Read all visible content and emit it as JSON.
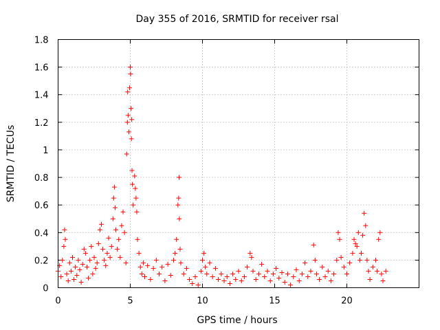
{
  "chart_data": {
    "type": "scatter",
    "title": "Day 355 of 2016, SRMTID for receiver rsal",
    "xlabel": "GPS time / hours",
    "ylabel": "SRMTID / TECUs",
    "xlim": [
      0,
      25
    ],
    "ylim": [
      0,
      1.8
    ],
    "xticks": [
      0,
      5,
      10,
      15,
      20
    ],
    "xtick_labels": [
      "0",
      "5",
      "10",
      "15",
      "20"
    ],
    "yticks": [
      0,
      0.2,
      0.4,
      0.6,
      0.8,
      1.0,
      1.2,
      1.4,
      1.6,
      1.8
    ],
    "ytick_labels": [
      "0",
      "0.2",
      "0.4",
      "0.6",
      "0.8",
      "1",
      "1.2",
      "1.4",
      "1.6",
      "1.8"
    ],
    "grid": true,
    "marker": "+",
    "color": "#ff0000",
    "series": [
      {
        "name": "SRMTID",
        "points": [
          [
            0.0,
            0.12
          ],
          [
            0.1,
            0.16
          ],
          [
            0.2,
            0.08
          ],
          [
            0.3,
            0.2
          ],
          [
            0.4,
            0.3
          ],
          [
            0.45,
            0.42
          ],
          [
            0.5,
            0.35
          ],
          [
            0.6,
            0.1
          ],
          [
            0.7,
            0.05
          ],
          [
            0.8,
            0.18
          ],
          [
            0.9,
            0.12
          ],
          [
            1.0,
            0.22
          ],
          [
            1.1,
            0.06
          ],
          [
            1.2,
            0.15
          ],
          [
            1.3,
            0.09
          ],
          [
            1.4,
            0.2
          ],
          [
            1.5,
            0.13
          ],
          [
            1.6,
            0.04
          ],
          [
            1.7,
            0.17
          ],
          [
            1.8,
            0.28
          ],
          [
            1.9,
            0.25
          ],
          [
            2.0,
            0.15
          ],
          [
            2.1,
            0.07
          ],
          [
            2.2,
            0.2
          ],
          [
            2.3,
            0.3
          ],
          [
            2.4,
            0.1
          ],
          [
            2.5,
            0.22
          ],
          [
            2.6,
            0.14
          ],
          [
            2.7,
            0.18
          ],
          [
            2.8,
            0.32
          ],
          [
            2.9,
            0.42
          ],
          [
            3.0,
            0.46
          ],
          [
            3.1,
            0.28
          ],
          [
            3.2,
            0.2
          ],
          [
            3.3,
            0.16
          ],
          [
            3.4,
            0.25
          ],
          [
            3.5,
            0.36
          ],
          [
            3.6,
            0.22
          ],
          [
            3.7,
            0.3
          ],
          [
            3.8,
            0.5
          ],
          [
            3.85,
            0.65
          ],
          [
            3.9,
            0.73
          ],
          [
            3.95,
            0.58
          ],
          [
            4.0,
            0.42
          ],
          [
            4.1,
            0.28
          ],
          [
            4.2,
            0.35
          ],
          [
            4.3,
            0.22
          ],
          [
            4.4,
            0.45
          ],
          [
            4.5,
            0.55
          ],
          [
            4.6,
            0.4
          ],
          [
            4.7,
            0.18
          ],
          [
            4.75,
            0.97
          ],
          [
            4.8,
            1.2
          ],
          [
            4.82,
            1.42
          ],
          [
            4.85,
            1.25
          ],
          [
            4.9,
            1.13
          ],
          [
            4.95,
            1.45
          ],
          [
            5.0,
            1.6
          ],
          [
            5.02,
            1.55
          ],
          [
            5.05,
            1.3
          ],
          [
            5.08,
            1.08
          ],
          [
            5.1,
            1.22
          ],
          [
            5.12,
            0.85
          ],
          [
            5.15,
            0.75
          ],
          [
            5.2,
            0.6
          ],
          [
            5.3,
            0.81
          ],
          [
            5.35,
            0.72
          ],
          [
            5.4,
            0.65
          ],
          [
            5.45,
            0.55
          ],
          [
            5.5,
            0.35
          ],
          [
            5.6,
            0.25
          ],
          [
            5.7,
            0.15
          ],
          [
            5.8,
            0.1
          ],
          [
            5.9,
            0.18
          ],
          [
            6.0,
            0.08
          ],
          [
            6.2,
            0.16
          ],
          [
            6.4,
            0.06
          ],
          [
            6.6,
            0.14
          ],
          [
            6.8,
            0.2
          ],
          [
            7.0,
            0.1
          ],
          [
            7.2,
            0.15
          ],
          [
            7.4,
            0.05
          ],
          [
            7.6,
            0.17
          ],
          [
            7.8,
            0.09
          ],
          [
            8.0,
            0.2
          ],
          [
            8.1,
            0.25
          ],
          [
            8.2,
            0.35
          ],
          [
            8.3,
            0.6
          ],
          [
            8.35,
            0.65
          ],
          [
            8.38,
            0.8
          ],
          [
            8.4,
            0.5
          ],
          [
            8.45,
            0.28
          ],
          [
            8.5,
            0.18
          ],
          [
            8.7,
            0.1
          ],
          [
            8.9,
            0.14
          ],
          [
            9.1,
            0.06
          ],
          [
            9.3,
            0.03
          ],
          [
            9.5,
            0.08
          ],
          [
            9.7,
            0.02
          ],
          [
            9.9,
            0.12
          ],
          [
            10.0,
            0.2
          ],
          [
            10.1,
            0.25
          ],
          [
            10.2,
            0.15
          ],
          [
            10.3,
            0.1
          ],
          [
            10.5,
            0.18
          ],
          [
            10.7,
            0.08
          ],
          [
            10.9,
            0.14
          ],
          [
            11.1,
            0.06
          ],
          [
            11.3,
            0.1
          ],
          [
            11.5,
            0.05
          ],
          [
            11.7,
            0.08
          ],
          [
            11.9,
            0.03
          ],
          [
            12.1,
            0.1
          ],
          [
            12.3,
            0.06
          ],
          [
            12.5,
            0.12
          ],
          [
            12.7,
            0.05
          ],
          [
            12.9,
            0.08
          ],
          [
            13.1,
            0.15
          ],
          [
            13.3,
            0.25
          ],
          [
            13.4,
            0.22
          ],
          [
            13.5,
            0.12
          ],
          [
            13.7,
            0.06
          ],
          [
            13.9,
            0.1
          ],
          [
            14.1,
            0.17
          ],
          [
            14.3,
            0.08
          ],
          [
            14.5,
            0.12
          ],
          [
            14.7,
            0.05
          ],
          [
            14.9,
            0.1
          ],
          [
            15.1,
            0.14
          ],
          [
            15.3,
            0.07
          ],
          [
            15.5,
            0.11
          ],
          [
            15.7,
            0.04
          ],
          [
            15.9,
            0.1
          ],
          [
            16.1,
            0.02
          ],
          [
            16.3,
            0.08
          ],
          [
            16.5,
            0.13
          ],
          [
            16.7,
            0.05
          ],
          [
            16.9,
            0.1
          ],
          [
            17.1,
            0.18
          ],
          [
            17.3,
            0.08
          ],
          [
            17.5,
            0.12
          ],
          [
            17.7,
            0.31
          ],
          [
            17.8,
            0.2
          ],
          [
            17.9,
            0.1
          ],
          [
            18.1,
            0.06
          ],
          [
            18.3,
            0.15
          ],
          [
            18.5,
            0.08
          ],
          [
            18.7,
            0.12
          ],
          [
            18.9,
            0.05
          ],
          [
            19.1,
            0.1
          ],
          [
            19.3,
            0.2
          ],
          [
            19.4,
            0.4
          ],
          [
            19.5,
            0.35
          ],
          [
            19.6,
            0.22
          ],
          [
            19.8,
            0.15
          ],
          [
            20.0,
            0.1
          ],
          [
            20.2,
            0.18
          ],
          [
            20.4,
            0.25
          ],
          [
            20.5,
            0.35
          ],
          [
            20.6,
            0.32
          ],
          [
            20.7,
            0.3
          ],
          [
            20.8,
            0.4
          ],
          [
            20.9,
            0.2
          ],
          [
            21.0,
            0.25
          ],
          [
            21.1,
            0.38
          ],
          [
            21.2,
            0.54
          ],
          [
            21.3,
            0.45
          ],
          [
            21.4,
            0.2
          ],
          [
            21.5,
            0.12
          ],
          [
            21.6,
            0.06
          ],
          [
            21.8,
            0.15
          ],
          [
            22.0,
            0.2
          ],
          [
            22.1,
            0.12
          ],
          [
            22.2,
            0.35
          ],
          [
            22.3,
            0.4
          ],
          [
            22.4,
            0.1
          ],
          [
            22.5,
            0.05
          ],
          [
            22.7,
            0.12
          ]
        ]
      }
    ]
  }
}
